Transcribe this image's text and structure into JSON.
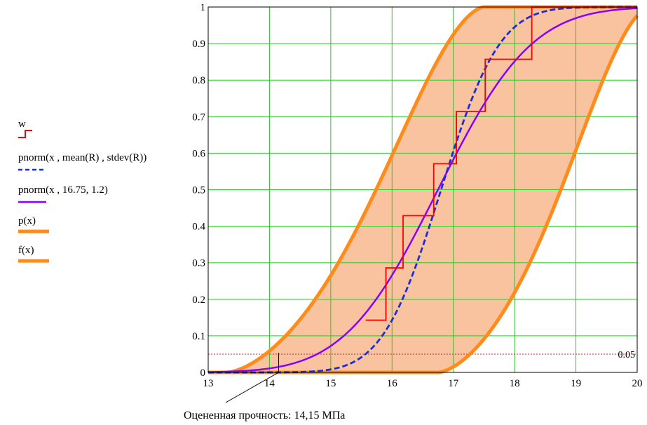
{
  "chart_data": {
    "type": "line",
    "title": "",
    "xlabel": "",
    "ylabel": "",
    "xlim": [
      13,
      20
    ],
    "ylim": [
      0,
      1
    ],
    "grid": true,
    "legend_placement": "left",
    "x_ticks": [
      "13",
      "14",
      "15",
      "16",
      "17",
      "18",
      "19",
      "20"
    ],
    "y_ticks": [
      "0",
      "0.1",
      "0.2",
      "0.3",
      "0.4",
      "0.5",
      "0.6",
      "0.7",
      "0.8",
      "0.9",
      "1"
    ],
    "series": [
      {
        "name": "w",
        "kind": "step",
        "color": "#ff0000",
        "x": [
          15.85,
          15.9,
          16.18,
          16.68,
          17.05,
          17.52,
          18.28
        ],
        "y": [
          0.143,
          0.286,
          0.429,
          0.571,
          0.714,
          0.857,
          1.0
        ]
      },
      {
        "name": "pnorm(x , mean(R) , stdev(R))",
        "kind": "cdf",
        "color": "#1a2fd6",
        "mean": 16.8,
        "sd": 0.75
      },
      {
        "name": "pnorm(x , 16.75, 1.2)",
        "kind": "cdf",
        "color": "#8a00ff",
        "mean": 16.75,
        "sd": 1.2
      },
      {
        "name": "p(x)",
        "kind": "band-upper",
        "color": "#ff8c1a"
      },
      {
        "name": "f(x)",
        "kind": "band-lower",
        "color": "#ff8c1a"
      }
    ],
    "band_fill": "#f9c3a0",
    "reference_line": {
      "y": 0.05,
      "label": "0.05",
      "color": "#d42020"
    },
    "annotation": {
      "text": "Оцененная прочность: 14,15 МПа",
      "x": 14.15
    }
  }
}
